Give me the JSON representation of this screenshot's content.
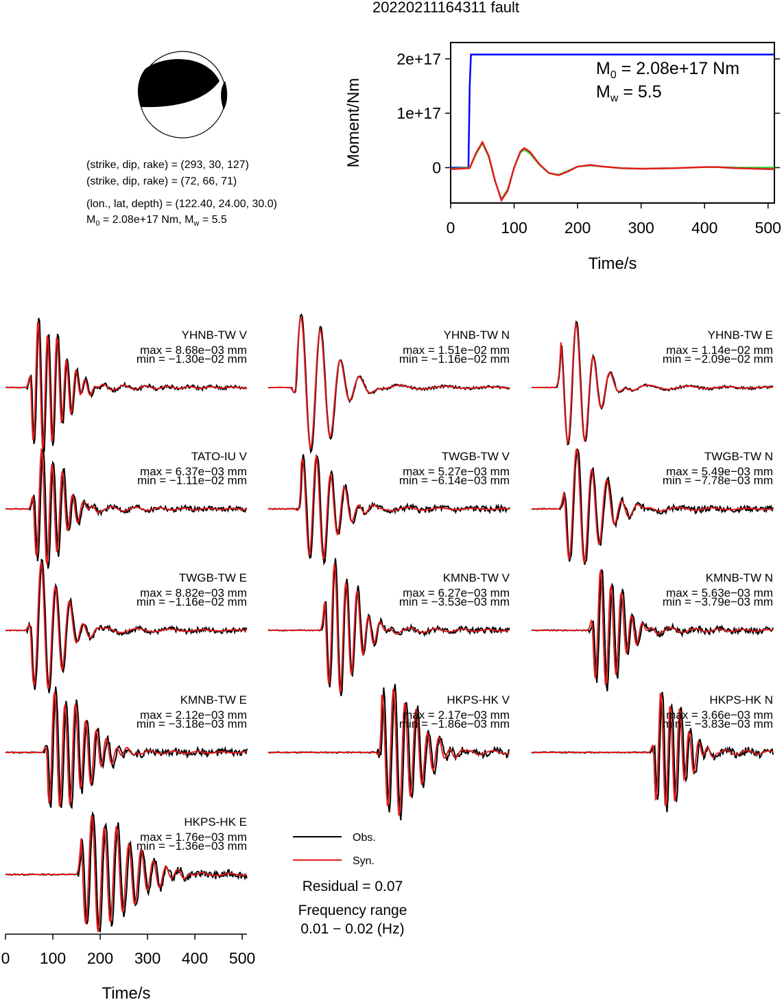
{
  "title": "20220211164311 fault",
  "mechanism": {
    "line1": "(strike, dip, rake) = (293, 30, 127)",
    "line2": "(strike, dip, rake) = (72, 66, 71)",
    "location": "(lon., lat, depth) = (122.40, 24.00, 30.0)",
    "moment_prefix": "M",
    "moment_text": " = 2.08e+17 Nm, M",
    "mw_text": " = 5.5"
  },
  "colors": {
    "observed": "#000000",
    "synthetic": "#e41a1c",
    "cumulative": "#0000ff",
    "stf_alt": "#33cc33"
  },
  "chart_data": [
    {
      "type": "line",
      "name": "moment-time",
      "xlabel": "Time/s",
      "ylabel": "Moment/Nm",
      "xlim": [
        0,
        510
      ],
      "ylim": [
        -65000000000000000,
        230000000000000000
      ],
      "xticks": [
        0,
        100,
        200,
        300,
        400,
        500
      ],
      "yticks": [
        0,
        100000000000000000,
        200000000000000000
      ],
      "ytick_labels": [
        "0",
        "1e+17",
        "2e+17"
      ],
      "annotation_moment": "M0 = 2.08e+17 Nm",
      "annotation_mw": "Mw = 5.5",
      "series": [
        {
          "color": "blue",
          "x": [
            0,
            28,
            30,
            32,
            510
          ],
          "y": [
            0,
            0,
            150000000000000000,
            208000000000000000,
            208000000000000000
          ]
        },
        {
          "color": "green",
          "x": [
            0,
            30,
            40,
            50,
            60,
            70,
            80,
            90,
            100,
            110,
            116,
            125,
            140,
            155,
            170,
            185,
            200,
            220,
            240,
            270,
            300,
            350,
            400,
            420,
            450,
            510
          ],
          "y": [
            -2000000000000000,
            0,
            25000000000000000,
            45000000000000000,
            20000000000000000,
            -25000000000000000,
            -58000000000000000,
            -40000000000000000,
            0,
            28000000000000000,
            33000000000000000,
            26000000000000000,
            5000000000000000,
            -10000000000000000,
            -13000000000000000,
            -6000000000000000,
            2000000000000000,
            4000000000000000,
            2000000000000000,
            -1000000000000000,
            -2000000000000000,
            -1000000000000000,
            1000000000000000,
            1000000000000000,
            0,
            0
          ]
        },
        {
          "color": "red",
          "x": [
            0,
            30,
            40,
            50,
            60,
            70,
            80,
            90,
            100,
            110,
            116,
            125,
            140,
            155,
            170,
            185,
            200,
            220,
            240,
            270,
            300,
            350,
            400,
            420,
            450,
            510
          ],
          "y": [
            -3000000000000000,
            -1000000000000000,
            27000000000000000,
            47000000000000000,
            22000000000000000,
            -24000000000000000,
            -60000000000000000,
            -42000000000000000,
            0,
            30000000000000000,
            36000000000000000,
            29000000000000000,
            6000000000000000,
            -10000000000000000,
            -14000000000000000,
            -7000000000000000,
            2000000000000000,
            5000000000000000,
            2000000000000000,
            -1000000000000000,
            -2000000000000000,
            -1000000000000000,
            1000000000000000,
            1000000000000000,
            -1000000000000000,
            -3000000000000000
          ]
        }
      ]
    },
    {
      "type": "line",
      "name": "waveform-fits",
      "xlabel": "Time/s",
      "xlim": [
        0,
        510
      ],
      "xticks": [
        0,
        100,
        200,
        300,
        400,
        500
      ],
      "legend": [
        {
          "label": "Obs.",
          "color": "black"
        },
        {
          "label": "Syn.",
          "color": "red"
        }
      ],
      "residual": "Residual = 0.07",
      "frequency_label": "Frequency range",
      "frequency_value": "0.01 − 0.02 (Hz)",
      "traces": [
        {
          "label": "YHNB-TW V",
          "max": "max = 8.68e−03 mm",
          "min": "min = −1.30e−02 mm",
          "t0": 55,
          "amp": 1.0,
          "period": 20,
          "decay": 45,
          "phase": 3.5,
          "obs_offset": 2,
          "noise": 0.03,
          "seed": 1
        },
        {
          "label": "YHNB-TW N",
          "max": "max = 1.51e−02 mm",
          "min": "min = −1.16e−02 mm",
          "t0": 60,
          "amp": 1.1,
          "period": 42,
          "decay": 55,
          "phase": 0.3,
          "obs_offset": 1,
          "noise": 0.02,
          "seed": 2
        },
        {
          "label": "YHNB-TW E",
          "max": "max = 1.14e−02 mm",
          "min": "min = −2.09e−02 mm",
          "t0": 62,
          "amp": 1.0,
          "period": 36,
          "decay": 45,
          "phase": 2.2,
          "obs_offset": 1,
          "noise": 0.02,
          "seed": 3
        },
        {
          "label": "TATO-IU V",
          "max": "max = 6.37e−03 mm",
          "min": "min = −1.11e−02 mm",
          "t0": 60,
          "amp": 0.9,
          "period": 22,
          "decay": 40,
          "phase": 3.2,
          "obs_offset": 3,
          "noise": 0.04,
          "seed": 4
        },
        {
          "label": "TWGB-TW V",
          "max": "max = 5.27e−03 mm",
          "min": "min = −6.14e−03 mm",
          "t0": 70,
          "amp": 0.85,
          "period": 30,
          "decay": 50,
          "phase": 1.2,
          "obs_offset": 2,
          "noise": 0.05,
          "seed": 5
        },
        {
          "label": "TWGB-TW N",
          "max": "max = 5.49e−03 mm",
          "min": "min = −7.78e−03 mm",
          "t0": 70,
          "amp": 0.9,
          "period": 32,
          "decay": 55,
          "phase": 2.9,
          "obs_offset": 2,
          "noise": 0.05,
          "seed": 6
        },
        {
          "label": "TWGB-TW E",
          "max": "max = 8.82e−03 mm",
          "min": "min = −1.16e−02 mm",
          "t0": 55,
          "amp": 1.0,
          "period": 30,
          "decay": 45,
          "phase": 3.6,
          "obs_offset": 2,
          "noise": 0.04,
          "seed": 7
        },
        {
          "label": "KMNB-TW V",
          "max": "max = 6.27e−03 mm",
          "min": "min = −3.53e−03 mm",
          "t0": 120,
          "amp": 1.0,
          "period": 24,
          "decay": 45,
          "phase": 2.6,
          "obs_offset": 2,
          "noise": 0.05,
          "seed": 8
        },
        {
          "label": "KMNB-TW N",
          "max": "max = 5.63e−03 mm",
          "min": "min = −3.79e−03 mm",
          "t0": 130,
          "amp": 0.9,
          "period": 22,
          "decay": 40,
          "phase": 3.4,
          "obs_offset": 3,
          "noise": 0.05,
          "seed": 9
        },
        {
          "label": "KMNB-TW E",
          "max": "max = 2.12e−03 mm",
          "min": "min = −3.18e−03 mm",
          "t0": 90,
          "amp": 0.9,
          "period": 22,
          "decay": 60,
          "phase": 4.0,
          "obs_offset": 3,
          "noise": 0.06,
          "seed": 10
        },
        {
          "label": "HKPS-HK V",
          "max": "max = 2.17e−03 mm",
          "min": "min = −1.86e−03 mm",
          "t0": 240,
          "amp": 1.0,
          "period": 24,
          "decay": 55,
          "phase": 1.4,
          "obs_offset": 3,
          "noise": 0.06,
          "seed": 11
        },
        {
          "label": "HKPS-HK N",
          "max": "max = 3.66e−03 mm",
          "min": "min = −3.83e−03 mm",
          "t0": 260,
          "amp": 0.9,
          "period": 20,
          "decay": 40,
          "phase": 3.8,
          "obs_offset": 3,
          "noise": 0.06,
          "seed": 12
        },
        {
          "label": "HKPS-HK E",
          "max": "max = 1.76e−03 mm",
          "min": "min = −1.36e−03 mm",
          "t0": 160,
          "amp": 0.9,
          "period": 26,
          "decay": 80,
          "phase": 2.4,
          "obs_offset": 3,
          "noise": 0.06,
          "seed": 13
        }
      ]
    }
  ]
}
